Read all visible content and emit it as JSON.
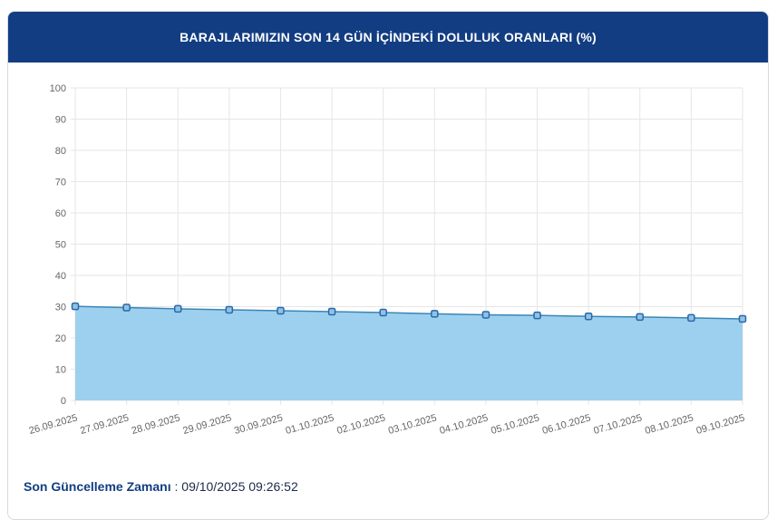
{
  "header": {
    "title": "BARAJLARIMIZIN SON 14 GÜN İÇİNDEKİ DOLULUK ORANLARI (%)"
  },
  "footer": {
    "label": "Son Güncelleme Zamanı",
    "value": "09/10/2025 09:26:52"
  },
  "colors": {
    "header": "#123d82",
    "fill": "#9dd0ee",
    "line": "#3a86b8",
    "marker": "#2a68a8"
  },
  "chart_data": {
    "type": "area",
    "title": "BARAJLARIMIZIN SON 14 GÜN İÇİNDEKİ DOLULUK ORANLARI (%)",
    "categories": [
      "26.09.2025",
      "27.09.2025",
      "28.09.2025",
      "29.09.2025",
      "30.09.2025",
      "01.10.2025",
      "02.10.2025",
      "03.10.2025",
      "04.10.2025",
      "05.10.2025",
      "06.10.2025",
      "07.10.2025",
      "08.10.2025",
      "09.10.2025"
    ],
    "values": [
      30.1,
      29.7,
      29.3,
      29.0,
      28.7,
      28.4,
      28.1,
      27.7,
      27.4,
      27.2,
      26.9,
      26.7,
      26.4,
      26.1
    ],
    "ylim": [
      0,
      100
    ],
    "yticks": [
      0,
      10,
      20,
      30,
      40,
      50,
      60,
      70,
      80,
      90,
      100
    ],
    "grid": true,
    "legend": "none"
  }
}
